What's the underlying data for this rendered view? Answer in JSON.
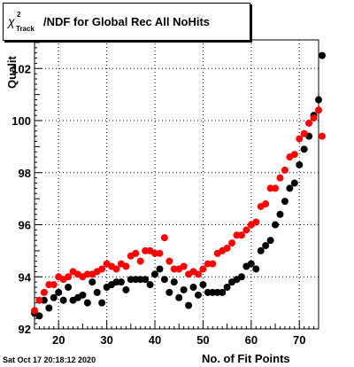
{
  "title": {
    "symbol": "χ",
    "superscript": "2",
    "subscript": "Track",
    "rest": "/NDF for Global Rec All NoHits"
  },
  "timestamp": "Sat Oct 17 20:18:12 2020",
  "colors": {
    "black_series": "#000000",
    "red_series": "#ff0000",
    "grid": "#000000"
  },
  "chart_data": {
    "type": "scatter",
    "title": "χ2Track/NDF for Global Rec All NoHits",
    "xlabel": "No. of Fit Points",
    "ylabel": "Qualit",
    "xlim": [
      15,
      74
    ],
    "ylim": [
      92,
      103.1
    ],
    "grid": true,
    "x_ticks": [
      20,
      30,
      40,
      50,
      60,
      70
    ],
    "y_ticks": [
      92,
      94,
      96,
      98,
      100,
      102
    ],
    "series": [
      {
        "color": "#000000",
        "points": [
          [
            15,
            92.6
          ],
          [
            16,
            92.5
          ],
          [
            17,
            93.1
          ],
          [
            18,
            92.8
          ],
          [
            19,
            93.2
          ],
          [
            20,
            93.4
          ],
          [
            21,
            93.1
          ],
          [
            22,
            93.6
          ],
          [
            23,
            93.1
          ],
          [
            24,
            93.2
          ],
          [
            25,
            93.3
          ],
          [
            26,
            93.0
          ],
          [
            27,
            93.8
          ],
          [
            28,
            93.4
          ],
          [
            29,
            93.0
          ],
          [
            30,
            93.6
          ],
          [
            31,
            93.7
          ],
          [
            32,
            93.8
          ],
          [
            33,
            93.8
          ],
          [
            34,
            93.5
          ],
          [
            35,
            93.9
          ],
          [
            36,
            93.9
          ],
          [
            37,
            93.9
          ],
          [
            38,
            93.9
          ],
          [
            39,
            93.7
          ],
          [
            40,
            94.1
          ],
          [
            41,
            94.3
          ],
          [
            42,
            93.9
          ],
          [
            43,
            93.4
          ],
          [
            44,
            93.8
          ],
          [
            45,
            93.2
          ],
          [
            46,
            93.5
          ],
          [
            47,
            92.9
          ],
          [
            48,
            93.6
          ],
          [
            49,
            93.3
          ],
          [
            50,
            93.7
          ],
          [
            51,
            93.4
          ],
          [
            52,
            93.4
          ],
          [
            53,
            93.4
          ],
          [
            54,
            93.4
          ],
          [
            55,
            93.6
          ],
          [
            56,
            93.8
          ],
          [
            57,
            93.9
          ],
          [
            58,
            94.0
          ],
          [
            59,
            94.4
          ],
          [
            60,
            94.5
          ],
          [
            61,
            94.3
          ],
          [
            62,
            95.0
          ],
          [
            63,
            95.2
          ],
          [
            64,
            95.4
          ],
          [
            65,
            96.0
          ],
          [
            66,
            96.4
          ],
          [
            67,
            96.9
          ],
          [
            68,
            97.4
          ],
          [
            69,
            97.6
          ],
          [
            70,
            98.3
          ],
          [
            71,
            98.9
          ],
          [
            72,
            99.4
          ],
          [
            73,
            100.2
          ],
          [
            74,
            100.8
          ],
          [
            75,
            102.5
          ]
        ]
      },
      {
        "color": "#ff0000",
        "points": [
          [
            15,
            92.7
          ],
          [
            16,
            93.1
          ],
          [
            17,
            93.4
          ],
          [
            18,
            93.7
          ],
          [
            19,
            93.7
          ],
          [
            20,
            94.0
          ],
          [
            21,
            93.9
          ],
          [
            22,
            94.0
          ],
          [
            23,
            94.2
          ],
          [
            24,
            94.1
          ],
          [
            25,
            94.0
          ],
          [
            26,
            94.1
          ],
          [
            27,
            94.1
          ],
          [
            28,
            94.2
          ],
          [
            29,
            94.3
          ],
          [
            30,
            94.5
          ],
          [
            31,
            94.4
          ],
          [
            32,
            94.3
          ],
          [
            33,
            94.5
          ],
          [
            34,
            94.4
          ],
          [
            35,
            94.8
          ],
          [
            36,
            94.9
          ],
          [
            37,
            94.6
          ],
          [
            38,
            95.0
          ],
          [
            39,
            95.0
          ],
          [
            40,
            94.9
          ],
          [
            41,
            94.9
          ],
          [
            42,
            95.5
          ],
          [
            43,
            94.6
          ],
          [
            44,
            94.3
          ],
          [
            45,
            94.3
          ],
          [
            46,
            94.4
          ],
          [
            47,
            94.1
          ],
          [
            48,
            94.2
          ],
          [
            49,
            94.1
          ],
          [
            50,
            94.3
          ],
          [
            51,
            94.5
          ],
          [
            52,
            94.5
          ],
          [
            53,
            94.9
          ],
          [
            54,
            95.0
          ],
          [
            55,
            95.1
          ],
          [
            56,
            95.3
          ],
          [
            57,
            95.6
          ],
          [
            58,
            95.6
          ],
          [
            59,
            95.8
          ],
          [
            60,
            96.0
          ],
          [
            61,
            96.1
          ],
          [
            62,
            96.7
          ],
          [
            63,
            96.8
          ],
          [
            64,
            97.4
          ],
          [
            65,
            97.4
          ],
          [
            66,
            97.8
          ],
          [
            67,
            98.1
          ],
          [
            68,
            98.6
          ],
          [
            69,
            98.7
          ],
          [
            70,
            99.3
          ],
          [
            71,
            99.5
          ],
          [
            72,
            99.9
          ],
          [
            73,
            100.1
          ],
          [
            74,
            100.4
          ],
          [
            75,
            99.4
          ]
        ]
      }
    ]
  }
}
